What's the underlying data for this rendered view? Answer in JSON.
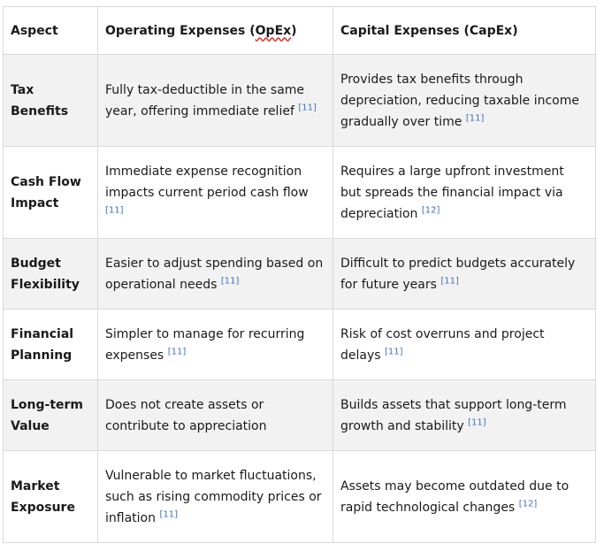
{
  "table": {
    "headers": {
      "aspect": "Aspect",
      "opex_prefix": "Operating Expenses (",
      "opex_word": "OpEx",
      "opex_suffix": ")",
      "capex": "Capital Expenses (CapEx)"
    },
    "rows": [
      {
        "aspect": "Tax Benefits",
        "opex": "Fully tax-deductible in the same year, offering immediate relief",
        "opex_ref": "[11]",
        "capex": "Provides tax benefits through depreciation, reducing taxable income gradually over time",
        "capex_ref": "[11]"
      },
      {
        "aspect": "Cash Flow Impact",
        "opex": "Immediate expense recognition impacts current period cash flow",
        "opex_ref": "[11]",
        "capex": "Requires a large upfront investment but spreads the financial impact via depreciation",
        "capex_ref": "[12]"
      },
      {
        "aspect": "Budget Flexibility",
        "opex": "Easier to adjust spending based on operational needs",
        "opex_ref": "[11]",
        "capex": "Difficult to predict budgets accurately for future years",
        "capex_ref": "[11]"
      },
      {
        "aspect": "Financial Planning",
        "opex": "Simpler to manage for recurring expenses",
        "opex_ref": "[11]",
        "capex": "Risk of cost overruns and project delays",
        "capex_ref": "[11]"
      },
      {
        "aspect": "Long-term Value",
        "opex": "Does not create assets or contribute to appreciation",
        "opex_ref": "",
        "capex": "Builds assets that support long-term growth and stability",
        "capex_ref": "[11]"
      },
      {
        "aspect": "Market Exposure",
        "opex": "Vulnerable to market fluctuations, such as rising commodity prices or inflation",
        "opex_ref": "[11]",
        "capex": "Assets may become outdated due to rapid technological changes",
        "capex_ref": "[12]"
      }
    ]
  }
}
